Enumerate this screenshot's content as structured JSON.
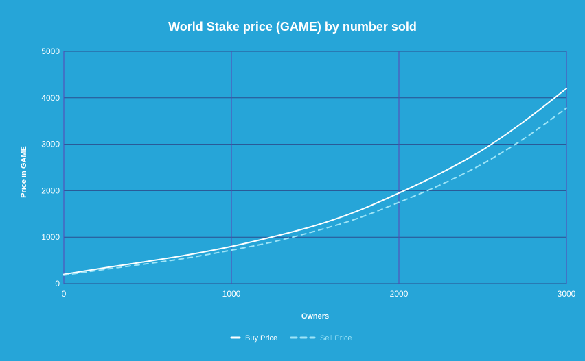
{
  "chart_data": {
    "type": "line",
    "title": "World Stake price (GAME) by number sold",
    "xlabel": "Owners",
    "ylabel": "Price in GAME",
    "xlim": [
      0,
      3000
    ],
    "ylim": [
      0,
      5000
    ],
    "x_ticks": [
      0,
      1000,
      2000,
      3000
    ],
    "y_ticks": [
      0,
      1000,
      2000,
      3000,
      4000,
      5000
    ],
    "x_tick_labels": [
      "0",
      "1000",
      "2000",
      "3000"
    ],
    "y_tick_labels": [
      "0",
      "1000",
      "2000",
      "3000",
      "4000",
      "5000"
    ],
    "grid": true,
    "legend_position": "bottom-center",
    "x": [
      0,
      250,
      500,
      750,
      1000,
      1250,
      1500,
      1750,
      2000,
      2250,
      2500,
      2750,
      3000
    ],
    "series": [
      {
        "name": "Buy Price",
        "style": "solid",
        "color": "#ffffff",
        "values": [
          200,
          345,
          480,
          625,
          800,
          1010,
          1250,
          1560,
          1950,
          2380,
          2880,
          3500,
          4200
        ]
      },
      {
        "name": "Sell Price",
        "style": "dashed",
        "color": "#9ee4f7",
        "values": [
          180,
          310,
          430,
          560,
          720,
          900,
          1130,
          1400,
          1750,
          2130,
          2580,
          3130,
          3780
        ]
      }
    ]
  },
  "colors": {
    "background": "#26a5d8",
    "grid_horizontal": "#2a4f8f",
    "grid_vertical": "#5a43b5",
    "text": "#ffffff"
  }
}
